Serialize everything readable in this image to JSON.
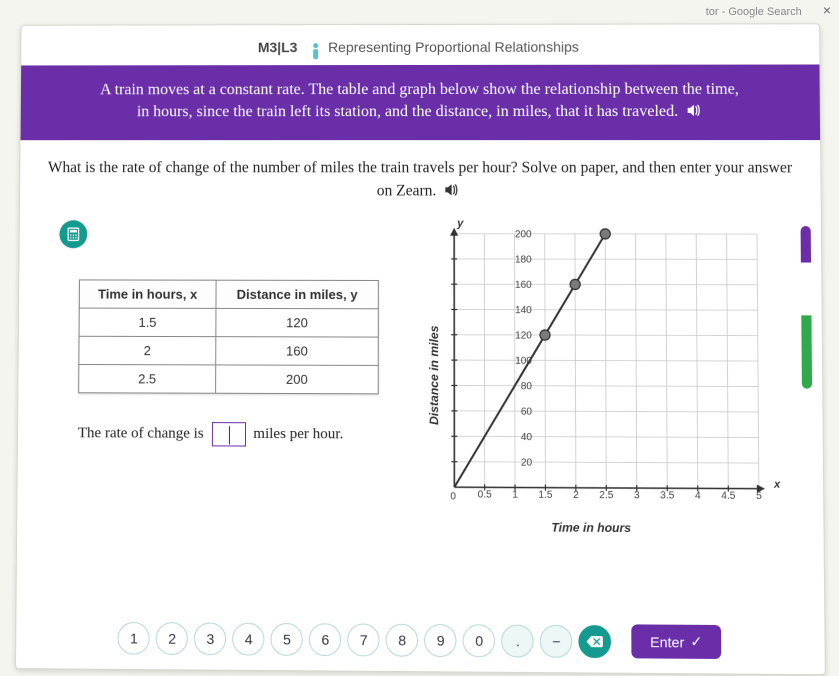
{
  "browser": {
    "search_text": "tor - Google Search"
  },
  "lesson": {
    "code": "M3|L3",
    "title": "Representing Proportional Relationships"
  },
  "banner": {
    "text_a": "A train moves at a constant rate. The table and graph below show the relationship between the time,",
    "text_b": "in hours, since the train left its station, and the distance, in miles, that it has traveled."
  },
  "question": {
    "line": "What is the rate of change of the number of miles the train travels per hour? Solve on paper, and then enter your answer on Zearn."
  },
  "table": {
    "col_x": "Time in hours, x",
    "col_y": "Distance in miles, y",
    "rows": [
      {
        "x": "1.5",
        "y": "120"
      },
      {
        "x": "2",
        "y": "160"
      },
      {
        "x": "2.5",
        "y": "200"
      }
    ]
  },
  "answer_sentence": {
    "pre": "The rate of change is",
    "post": "miles per hour."
  },
  "chart": {
    "type": "line",
    "x_label": "Time in hours",
    "y_label": "Distance in miles",
    "x_sym": "x",
    "y_sym": "y",
    "xlim": [
      0,
      5
    ],
    "ylim": [
      0,
      200
    ],
    "xtick_step": 0.5,
    "ytick_step": 20,
    "xticks": [
      "0",
      "0.5",
      "1",
      "1.5",
      "2",
      "2.5",
      "3",
      "3.5",
      "4",
      "4.5",
      "5"
    ],
    "yticks": [
      "20",
      "40",
      "60",
      "80",
      "100",
      "120",
      "140",
      "160",
      "180",
      "200"
    ],
    "grid_color": "#c9c9c9",
    "axis_color": "#333333",
    "line_color": "#333333",
    "point_fill": "#7a7a7a",
    "point_stroke": "#333333",
    "point_radius": 5,
    "line_width": 2,
    "background_color": "#ffffff",
    "line_from": [
      0,
      0
    ],
    "line_to": [
      2.5,
      200
    ],
    "points": [
      [
        1.5,
        120
      ],
      [
        2,
        160
      ],
      [
        2.5,
        200
      ]
    ]
  },
  "progress": {
    "segments": [
      {
        "color": "#6a2fa8",
        "h": 18
      },
      {
        "color": "#6a2fa8",
        "h": 18
      },
      {
        "color": "#ffffff",
        "h": 52
      },
      {
        "color": "#2faa4b",
        "h": 18
      },
      {
        "color": "#2faa4b",
        "h": 18
      },
      {
        "color": "#2faa4b",
        "h": 18
      },
      {
        "color": "#2faa4b",
        "h": 18
      }
    ]
  },
  "keypad": {
    "digits": [
      "1",
      "2",
      "3",
      "4",
      "5",
      "6",
      "7",
      "8",
      "9",
      "0"
    ],
    "dot": ".",
    "minus": "−",
    "enter": "Enter"
  }
}
